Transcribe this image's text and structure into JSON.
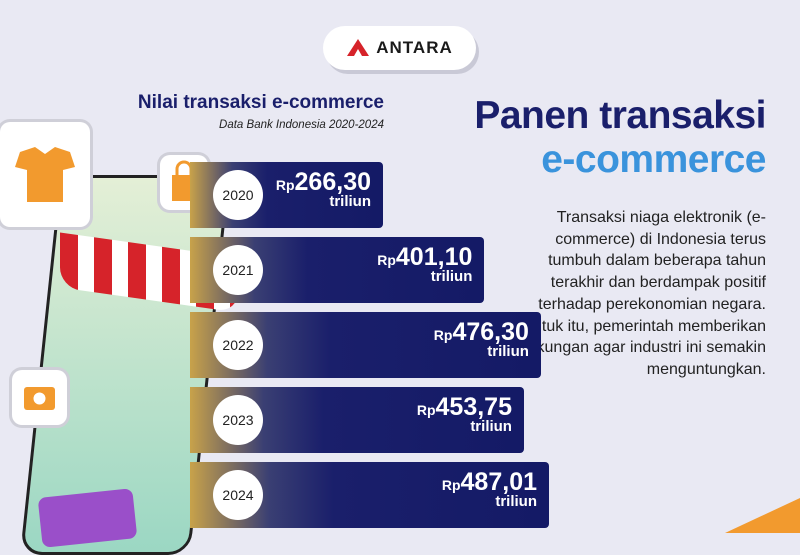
{
  "logo": {
    "text": "ANTARA"
  },
  "chart_title": "Nilai transaksi e-commerce",
  "chart_subtitle": "Data Bank Indonesia 2020-2024",
  "headline": {
    "line1": "Panen transaksi",
    "line2": "e-commerce"
  },
  "body_text": "Transaksi niaga elektronik (e-commerce) di Indonesia terus tumbuh dalam beberapa tahun terakhir dan berdampak positif terhadap perekonomian negara. Untuk itu, pemerintah memberikan dukungan agar industri ini semakin menguntungkan.",
  "colors": {
    "navy": "#1a1f6b",
    "blue": "#3a93dc",
    "orange": "#f29a2e",
    "gold": "#c8a24a"
  },
  "chart_data": {
    "type": "bar",
    "orientation": "horizontal",
    "title": "Nilai transaksi e-commerce",
    "subtitle": "Data Bank Indonesia 2020-2024",
    "categories": [
      "2020",
      "2021",
      "2022",
      "2023",
      "2024"
    ],
    "values": [
      266.3,
      401.1,
      476.3,
      453.75,
      487.01
    ],
    "labels": [
      "266,30",
      "401,10",
      "476,30",
      "453,75",
      "487,01"
    ],
    "prefix": "Rp",
    "unit": "triliun"
  }
}
